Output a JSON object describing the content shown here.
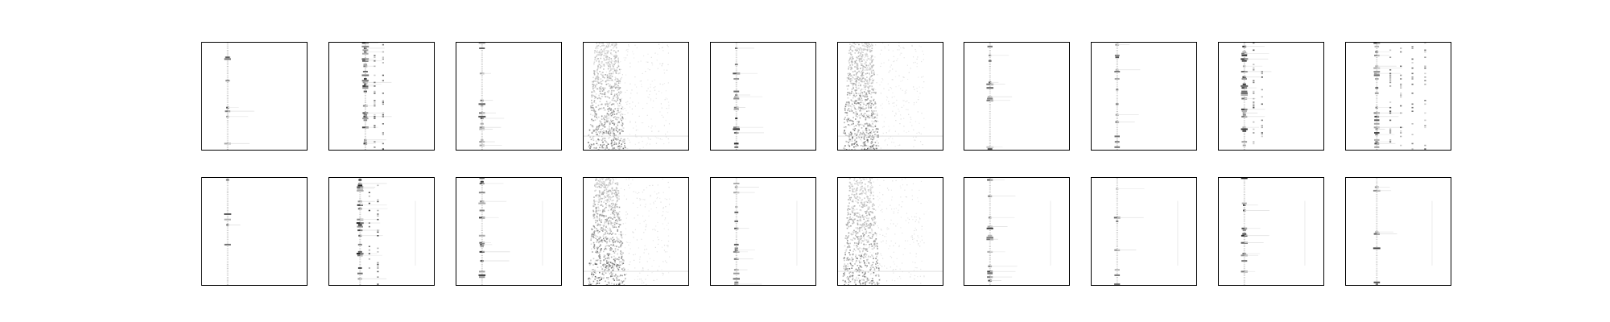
{
  "chart_data": {
    "type": "heatmap",
    "layout": {
      "rows": 2,
      "cols": 10
    },
    "colormap": "gray_r",
    "axes_visible": false,
    "grid": false,
    "panels": [
      {
        "row": 0,
        "col": 0,
        "stripe_x": 0.25,
        "pattern": "sparse-column",
        "density": 0.15,
        "intensity": 0.8
      },
      {
        "row": 0,
        "col": 1,
        "stripe_x": 0.35,
        "pattern": "dense-column",
        "density": 0.55,
        "intensity": 0.85
      },
      {
        "row": 0,
        "col": 2,
        "stripe_x": 0.25,
        "pattern": "sparse-column",
        "density": 0.25,
        "intensity": 0.7
      },
      {
        "row": 0,
        "col": 3,
        "stripe_x": 0.22,
        "pattern": "noisy-band",
        "density": 0.85,
        "intensity": 0.6
      },
      {
        "row": 0,
        "col": 4,
        "stripe_x": 0.25,
        "pattern": "sparse-column",
        "density": 0.3,
        "intensity": 0.85
      },
      {
        "row": 0,
        "col": 5,
        "stripe_x": 0.22,
        "pattern": "noisy-band",
        "density": 0.9,
        "intensity": 0.65
      },
      {
        "row": 0,
        "col": 6,
        "stripe_x": 0.25,
        "pattern": "sparse-column",
        "density": 0.2,
        "intensity": 0.7
      },
      {
        "row": 0,
        "col": 7,
        "stripe_x": 0.25,
        "pattern": "sparse-column",
        "density": 0.12,
        "intensity": 0.75
      },
      {
        "row": 0,
        "col": 8,
        "stripe_x": 0.25,
        "pattern": "dense-column",
        "density": 0.45,
        "intensity": 0.85
      },
      {
        "row": 0,
        "col": 9,
        "stripe_x": 0.3,
        "pattern": "multi-column",
        "density": 0.4,
        "intensity": 0.8
      },
      {
        "row": 1,
        "col": 0,
        "stripe_x": 0.25,
        "pattern": "sparse-column",
        "density": 0.18,
        "intensity": 0.85
      },
      {
        "row": 1,
        "col": 1,
        "stripe_x": 0.3,
        "pattern": "dense-column",
        "density": 0.35,
        "intensity": 0.9
      },
      {
        "row": 1,
        "col": 2,
        "stripe_x": 0.25,
        "pattern": "sparse-column",
        "density": 0.2,
        "intensity": 0.8
      },
      {
        "row": 1,
        "col": 3,
        "stripe_x": 0.22,
        "pattern": "noisy-band",
        "density": 0.85,
        "intensity": 0.7
      },
      {
        "row": 1,
        "col": 4,
        "stripe_x": 0.25,
        "pattern": "sparse-column",
        "density": 0.28,
        "intensity": 0.85
      },
      {
        "row": 1,
        "col": 5,
        "stripe_x": 0.22,
        "pattern": "noisy-band",
        "density": 0.8,
        "intensity": 0.6
      },
      {
        "row": 1,
        "col": 6,
        "stripe_x": 0.25,
        "pattern": "sparse-column",
        "density": 0.25,
        "intensity": 0.75
      },
      {
        "row": 1,
        "col": 7,
        "stripe_x": 0.25,
        "pattern": "sparse-column",
        "density": 0.15,
        "intensity": 0.75
      },
      {
        "row": 1,
        "col": 8,
        "stripe_x": 0.25,
        "pattern": "sparse-column",
        "density": 0.25,
        "intensity": 0.9
      },
      {
        "row": 1,
        "col": 9,
        "stripe_x": 0.3,
        "pattern": "sparse-column",
        "density": 0.15,
        "intensity": 0.8
      }
    ]
  }
}
